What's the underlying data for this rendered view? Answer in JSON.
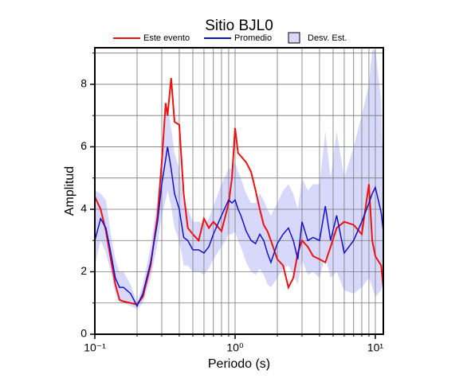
{
  "chart_data": {
    "type": "line",
    "title": "Sitio BJL0",
    "xlabel": "Periodo (s)",
    "ylabel": "Amplitud",
    "xscale": "log",
    "grid": true,
    "xlim": [
      0.1,
      11.4
    ],
    "ylim": [
      0,
      9.17
    ],
    "xticks": [
      {
        "value": 0.1,
        "label": "10⁻¹"
      },
      {
        "value": 1,
        "label": "10⁰"
      },
      {
        "value": 10,
        "label": "10¹"
      }
    ],
    "x_minor_ticks": [
      0.2,
      0.3,
      0.4,
      0.5,
      0.6,
      0.7,
      0.8,
      0.9,
      2,
      3,
      4,
      5,
      6,
      7,
      8,
      9
    ],
    "yticks": [
      0,
      2,
      4,
      6,
      8
    ],
    "y_minor_ticks": [
      1,
      3,
      5,
      7,
      9
    ],
    "x": [
      0.1,
      0.11,
      0.12,
      0.13,
      0.14,
      0.15,
      0.16,
      0.18,
      0.2,
      0.22,
      0.25,
      0.28,
      0.3,
      0.32,
      0.33,
      0.35,
      0.37,
      0.4,
      0.43,
      0.46,
      0.5,
      0.55,
      0.6,
      0.65,
      0.7,
      0.8,
      0.9,
      0.95,
      1.0,
      1.05,
      1.1,
      1.2,
      1.3,
      1.4,
      1.5,
      1.6,
      1.7,
      1.8,
      2.0,
      2.2,
      2.4,
      2.6,
      2.8,
      3.0,
      3.3,
      3.6,
      4.0,
      4.4,
      4.8,
      5.3,
      6.0,
      7.0,
      8.0,
      9.0,
      9.5,
      10,
      11,
      11.4
    ],
    "band": {
      "name": "Desv. Est.",
      "color": "#d8d8fa",
      "upper": [
        4.6,
        4.5,
        4.3,
        3.2,
        2.4,
        2.0,
        2.0,
        1.6,
        1.0,
        1.6,
        2.8,
        4.3,
        5.8,
        7.0,
        7.3,
        6.6,
        5.8,
        5.3,
        4.2,
        4.0,
        3.6,
        3.6,
        3.5,
        3.7,
        4.1,
        4.8,
        5.3,
        5.3,
        5.5,
        5.2,
        5.0,
        4.5,
        4.2,
        4.2,
        4.5,
        4.3,
        4.0,
        3.8,
        4.2,
        4.6,
        4.8,
        4.5,
        4.0,
        5.0,
        4.6,
        4.8,
        4.8,
        6.5,
        5.0,
        6.5,
        5.0,
        6.0,
        7.0,
        8.0,
        9.1,
        9.1,
        7.5,
        5.0
      ],
      "lower": [
        2.2,
        3.0,
        2.6,
        2.0,
        1.3,
        1.0,
        1.0,
        0.9,
        0.8,
        1.0,
        1.8,
        2.9,
        3.8,
        4.3,
        4.6,
        4.1,
        3.4,
        3.0,
        2.2,
        2.2,
        2.0,
        2.0,
        1.9,
        2.1,
        2.4,
        2.8,
        3.2,
        3.2,
        3.3,
        3.0,
        2.8,
        2.3,
        2.0,
        1.9,
        2.1,
        1.9,
        1.6,
        1.5,
        1.8,
        2.1,
        2.2,
        1.9,
        1.6,
        2.4,
        1.9,
        2.0,
        1.8,
        2.5,
        1.8,
        2.0,
        1.4,
        1.3,
        1.5,
        1.8,
        1.5,
        1.2,
        1.4,
        1.6
      ]
    },
    "series": [
      {
        "name": "Este evento",
        "color": "#ee1111",
        "values": [
          4.4,
          4.0,
          3.3,
          2.4,
          1.6,
          1.1,
          1.05,
          1.0,
          0.95,
          1.2,
          2.2,
          3.8,
          5.5,
          7.4,
          7.0,
          8.2,
          6.8,
          6.7,
          4.5,
          3.4,
          3.2,
          3.0,
          3.7,
          3.4,
          3.6,
          3.3,
          4.2,
          5.0,
          6.6,
          5.8,
          5.7,
          5.5,
          5.2,
          4.6,
          4.0,
          3.5,
          3.3,
          3.0,
          2.4,
          2.2,
          1.5,
          1.8,
          2.6,
          3.0,
          2.8,
          2.5,
          2.4,
          2.3,
          2.8,
          3.4,
          3.6,
          3.5,
          3.2,
          4.8,
          3.0,
          2.5,
          2.2,
          1.5
        ]
      },
      {
        "name": "Promedio",
        "color": "#1111cc",
        "values": [
          3.0,
          3.7,
          3.4,
          2.6,
          1.8,
          1.5,
          1.5,
          1.3,
          0.9,
          1.3,
          2.3,
          3.6,
          4.8,
          5.6,
          6.0,
          5.3,
          4.5,
          4.0,
          3.1,
          3.0,
          2.7,
          2.7,
          2.6,
          2.8,
          3.2,
          3.8,
          4.3,
          4.2,
          4.3,
          4.0,
          3.8,
          3.3,
          3.0,
          2.9,
          3.2,
          3.0,
          2.6,
          2.3,
          2.9,
          3.2,
          3.4,
          3.0,
          2.4,
          3.6,
          3.0,
          3.1,
          3.0,
          4.1,
          3.0,
          3.8,
          2.6,
          3.0,
          3.6,
          4.2,
          4.5,
          4.7,
          3.9,
          3.3
        ]
      }
    ]
  }
}
